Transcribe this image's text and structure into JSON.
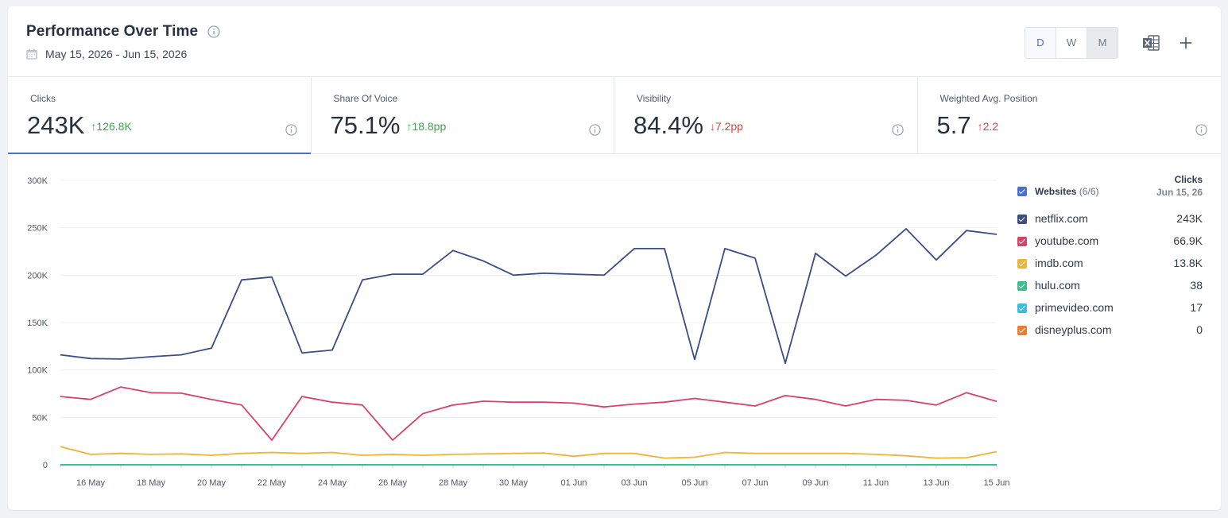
{
  "header": {
    "title": "Performance Over Time",
    "date_range": "May 15, 2026 - Jun 15, 2026",
    "granularity": [
      {
        "label": "D",
        "state": "active"
      },
      {
        "label": "W",
        "state": "normal"
      },
      {
        "label": "M",
        "state": "dim"
      }
    ]
  },
  "metrics": [
    {
      "label": "Clicks",
      "value": "243K",
      "delta": "126.8K",
      "direction": "up",
      "active": true
    },
    {
      "label": "Share Of Voice",
      "value": "75.1%",
      "delta": "18.8pp",
      "direction": "up",
      "active": false
    },
    {
      "label": "Visibility",
      "value": "84.4%",
      "delta": "7.2pp",
      "direction": "down",
      "active": false
    },
    {
      "label": "Weighted Avg. Position",
      "value": "5.7",
      "delta": "2.2",
      "direction": "up-bad",
      "active": false
    }
  ],
  "legend": {
    "group_label": "Websites",
    "group_count": "(6/6)",
    "column_title": "Clicks",
    "column_date": "Jun 15, 26",
    "checkbox_color": "#4a6fd1"
  },
  "chart_data": {
    "type": "line",
    "x": [
      "May 15",
      "May 16",
      "May 17",
      "May 18",
      "May 19",
      "May 20",
      "May 21",
      "May 22",
      "May 23",
      "May 24",
      "May 25",
      "May 26",
      "May 27",
      "May 28",
      "May 29",
      "May 30",
      "May 31",
      "Jun 01",
      "Jun 02",
      "Jun 03",
      "Jun 04",
      "Jun 05",
      "Jun 06",
      "Jun 07",
      "Jun 08",
      "Jun 09",
      "Jun 10",
      "Jun 11",
      "Jun 12",
      "Jun 13",
      "Jun 14",
      "Jun 15"
    ],
    "x_tick_labels": [
      "16 May",
      "18 May",
      "20 May",
      "22 May",
      "24 May",
      "26 May",
      "28 May",
      "30 May",
      "01 Jun",
      "03 Jun",
      "05 Jun",
      "07 Jun",
      "09 Jun",
      "11 Jun",
      "13 Jun",
      "15 Jun"
    ],
    "y_ticks": [
      "0",
      "50K",
      "100K",
      "150K",
      "200K",
      "250K",
      "300K"
    ],
    "ylim": [
      0,
      300000
    ],
    "grid": true,
    "series": [
      {
        "name": "netflix.com",
        "color": "#3b4d87",
        "latest": "243K",
        "values": [
          116000,
          112000,
          111500,
          114000,
          116000,
          123000,
          195000,
          198000,
          118000,
          121000,
          195000,
          201000,
          201000,
          226000,
          215000,
          200000,
          202000,
          201000,
          200000,
          228000,
          228000,
          111000,
          228000,
          218000,
          107000,
          223000,
          199000,
          221000,
          249000,
          216000,
          247000,
          243000
        ]
      },
      {
        "name": "youtube.com",
        "color": "#d9416a",
        "latest": "66.9K",
        "values": [
          72000,
          69000,
          82000,
          76000,
          75500,
          69000,
          63000,
          26000,
          72000,
          66000,
          63000,
          26000,
          54000,
          63000,
          67000,
          66000,
          66000,
          65000,
          61000,
          64000,
          66000,
          70000,
          66000,
          62000,
          73000,
          69000,
          62000,
          69000,
          68000,
          63000,
          76000,
          66900
        ]
      },
      {
        "name": "imdb.com",
        "color": "#f2b233",
        "latest": "13.8K",
        "values": [
          19000,
          11000,
          12000,
          11000,
          11500,
          10000,
          12000,
          13000,
          12000,
          13000,
          10000,
          11000,
          10000,
          11000,
          11500,
          12000,
          12500,
          9000,
          12000,
          12000,
          7000,
          8000,
          13000,
          12000,
          12000,
          12000,
          12000,
          11000,
          9500,
          7000,
          7500,
          13800
        ]
      },
      {
        "name": "hulu.com",
        "color": "#38c08a",
        "latest": "38",
        "values": [
          40,
          35,
          42,
          38,
          40,
          36,
          39,
          41,
          37,
          40,
          38,
          36,
          39,
          41,
          38,
          37,
          40,
          39,
          38,
          37,
          39,
          41,
          38,
          40,
          37,
          39,
          38,
          40,
          39,
          37,
          38,
          38
        ]
      },
      {
        "name": "primevideo.com",
        "color": "#33bfe0",
        "latest": "17",
        "values": [
          18,
          16,
          17,
          19,
          17,
          16,
          18,
          17,
          16,
          18,
          17,
          19,
          16,
          17,
          18,
          17,
          16,
          18,
          17,
          16,
          18,
          17,
          19,
          16,
          17,
          18,
          17,
          16,
          18,
          17,
          16,
          17
        ]
      },
      {
        "name": "disneyplus.com",
        "color": "#f07a2d",
        "latest": "0",
        "values": [
          0,
          0,
          0,
          0,
          0,
          0,
          0,
          0,
          0,
          0,
          0,
          0,
          0,
          0,
          0,
          0,
          0,
          0,
          0,
          0,
          0,
          0,
          0,
          0,
          0,
          0,
          0,
          0,
          0,
          0,
          0,
          0
        ]
      }
    ]
  }
}
